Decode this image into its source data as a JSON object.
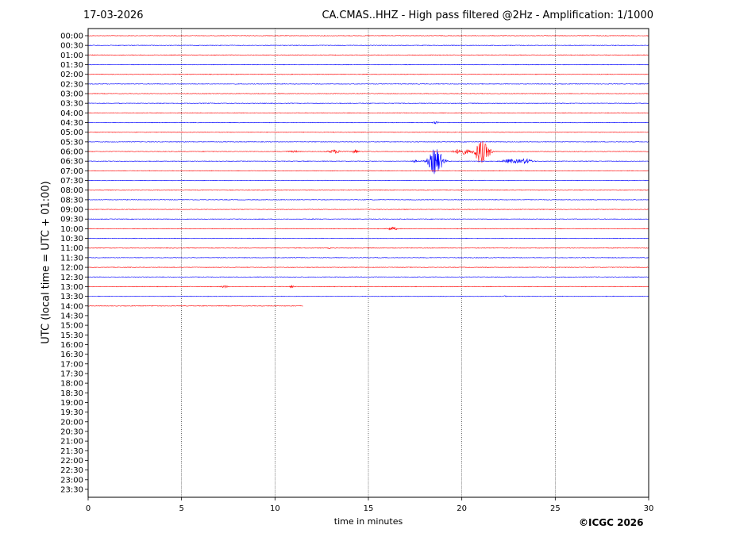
{
  "header": {
    "date": "17-03-2026",
    "title": "CA.CMAS..HHZ - High pass filtered @2Hz - Amplification: 1/1000"
  },
  "footer": {
    "credit": "©ICGC 2026"
  },
  "chart_data": {
    "type": "line",
    "title": "CA.CMAS..HHZ - High pass filtered @2Hz - Amplification: 1/1000",
    "xlabel": "time in minutes",
    "ylabel": "UTC (local time = UTC + 01:00)",
    "xlim": [
      0,
      30
    ],
    "x_ticks": [
      0,
      5,
      10,
      15,
      20,
      25,
      30
    ],
    "grid": "vertical dotted lines at x ticks",
    "row_labels": [
      "00:00",
      "00:30",
      "01:00",
      "01:30",
      "02:00",
      "02:30",
      "03:00",
      "03:30",
      "04:00",
      "04:30",
      "05:00",
      "05:30",
      "06:00",
      "06:30",
      "07:00",
      "07:30",
      "08:00",
      "08:30",
      "09:00",
      "09:30",
      "10:00",
      "10:30",
      "11:00",
      "11:30",
      "12:00",
      "12:30",
      "13:00",
      "13:30",
      "14:00",
      "14:30",
      "15:00",
      "15:30",
      "16:00",
      "16:30",
      "17:00",
      "17:30",
      "18:00",
      "18:30",
      "19:00",
      "19:30",
      "20:00",
      "20:30",
      "21:00",
      "21:30",
      "22:00",
      "22:30",
      "23:00",
      "23:30"
    ],
    "row_colors": [
      "#ff0000",
      "#0000ff"
    ],
    "traces_recorded_rows": 29,
    "last_row_end_minute": 11.5,
    "events": [
      {
        "row": "04:30",
        "minute": 18.6,
        "amplitude": 1.5,
        "width": 0.2
      },
      {
        "row": "06:00",
        "minute": 11.0,
        "amplitude": 0.8,
        "width": 0.5
      },
      {
        "row": "06:00",
        "minute": 13.2,
        "amplitude": 2.0,
        "width": 0.5
      },
      {
        "row": "06:00",
        "minute": 14.3,
        "amplitude": 2.5,
        "width": 0.2
      },
      {
        "row": "06:00",
        "minute": 20.0,
        "amplitude": 3.5,
        "width": 0.6
      },
      {
        "row": "06:00",
        "minute": 21.0,
        "amplitude": 15.0,
        "width": 0.4
      },
      {
        "row": "06:00",
        "minute": 21.4,
        "amplitude": 5.0,
        "width": 0.3
      },
      {
        "row": "06:30",
        "minute": 17.5,
        "amplitude": 1.2,
        "width": 0.3
      },
      {
        "row": "06:30",
        "minute": 18.6,
        "amplitude": 17.0,
        "width": 0.5
      },
      {
        "row": "06:30",
        "minute": 22.6,
        "amplitude": 2.5,
        "width": 0.6
      },
      {
        "row": "06:30",
        "minute": 23.4,
        "amplitude": 3.0,
        "width": 0.5
      },
      {
        "row": "09:30",
        "minute": 12.0,
        "amplitude": 0.8,
        "width": 0.1
      },
      {
        "row": "10:00",
        "minute": 16.3,
        "amplitude": 2.0,
        "width": 0.3
      },
      {
        "row": "11:00",
        "minute": 12.9,
        "amplitude": 0.6,
        "width": 0.1
      },
      {
        "row": "13:00",
        "minute": 7.3,
        "amplitude": 1.6,
        "width": 0.2
      },
      {
        "row": "13:00",
        "minute": 10.9,
        "amplitude": 1.6,
        "width": 0.15
      },
      {
        "row": "13:30",
        "minute": 22.3,
        "amplitude": 0.5,
        "width": 0.1
      }
    ]
  }
}
